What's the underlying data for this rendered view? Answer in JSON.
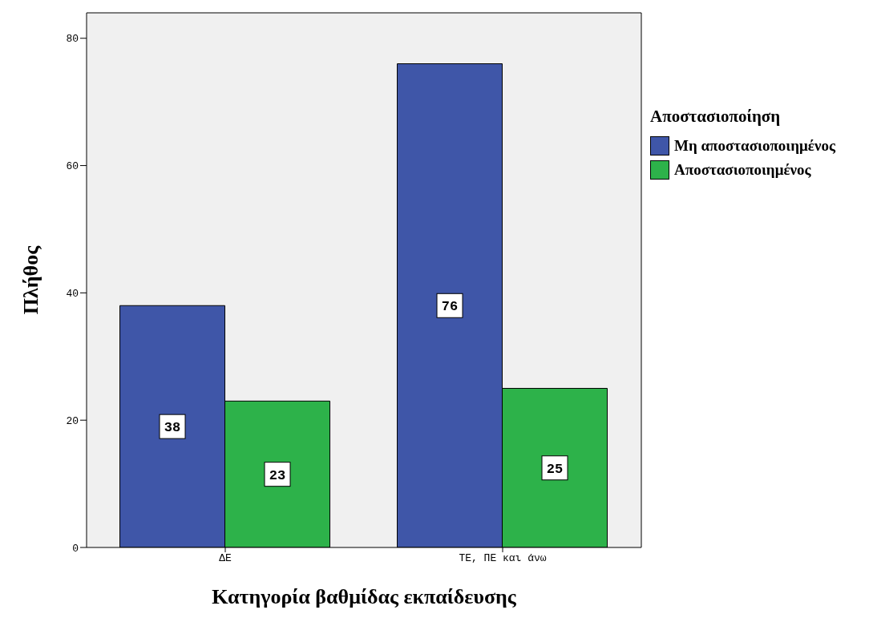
{
  "chart_data": {
    "type": "bar",
    "xlabel": "Κατηγορία βαθμίδας εκπαίδευσης",
    "ylabel": "Πλήθος",
    "legend_title": "Αποστασιοποίηση",
    "categories": [
      "ΔΕ",
      "ΤΕ, ΠΕ και άνω"
    ],
    "series": [
      {
        "name": "Μη αποστασιοποιημένος",
        "color": "#3f56a8",
        "values": [
          38,
          76
        ]
      },
      {
        "name": "Αποστασιοποιημένος",
        "color": "#2db24a",
        "values": [
          23,
          25
        ]
      }
    ],
    "ylim": [
      0,
      84
    ],
    "yticks": [
      0,
      20,
      40,
      60,
      80
    ],
    "data_labels": true,
    "legend": "right"
  }
}
